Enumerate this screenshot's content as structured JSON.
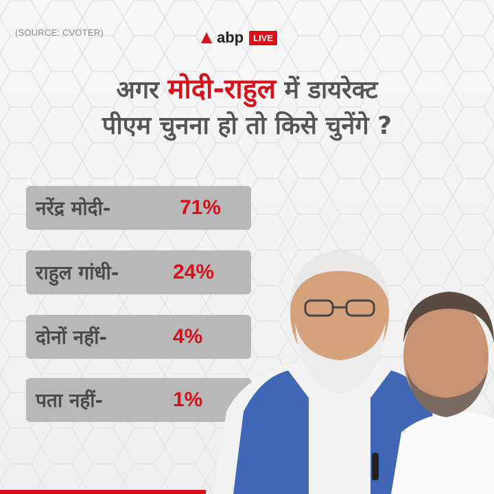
{
  "source": "(SOURCE: CVOTER)",
  "logo": {
    "text": "abp",
    "badge": "LIVE"
  },
  "headline": {
    "line1_prefix": "अगर",
    "line1_highlight": "मोदी-राहुल",
    "line1_suffix": "में डायरेक्ट",
    "line2": "पीएम चुनना हो तो किसे चुनेंगे ?"
  },
  "results": [
    {
      "label": "नरेंद्र मोदी-",
      "value": "71%"
    },
    {
      "label": "राहुल गांधी-",
      "value": "24%"
    },
    {
      "label": "दोनों नहीं-",
      "value": "4%"
    },
    {
      "label": "पता नहीं-",
      "value": "1%"
    }
  ],
  "colors": {
    "accent": "#d7101a",
    "box": "#b8b8b8",
    "text": "#4a4a4a"
  }
}
